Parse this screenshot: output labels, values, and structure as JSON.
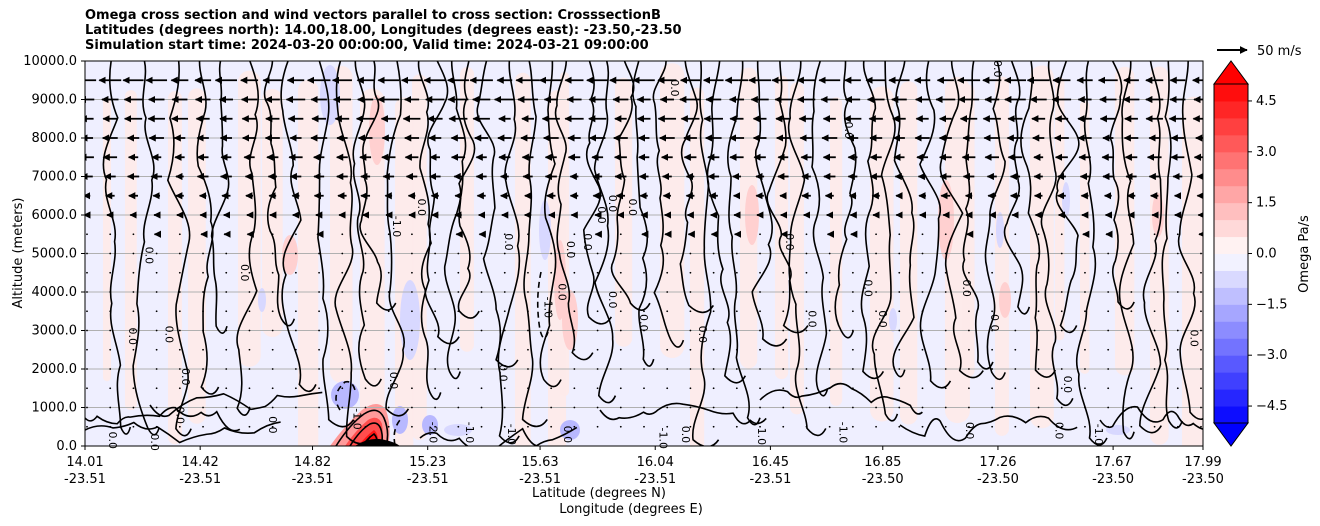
{
  "chart_data": {
    "type": "heatmap",
    "title_lines": [
      "Omega cross section and wind vectors parallel to cross section: CrosssectionB",
      "Latitudes (degrees north): 14.00,18.00, Longitudes (degrees east): -23.50,-23.50",
      "Simulation start time: 2024-03-20 00:00:00, Valid time: 2024-03-21 09:00:00"
    ],
    "ylabel": "Altitude (meters)",
    "xlabel_lines": [
      "Latitude (degrees N)",
      "Longitude (degrees E)"
    ],
    "ylim": [
      0,
      10000
    ],
    "yticks": [
      {
        "value": 0,
        "label": "0.0"
      },
      {
        "value": 1000,
        "label": "1000.0"
      },
      {
        "value": 2000,
        "label": "2000.0"
      },
      {
        "value": 3000,
        "label": "3000.0"
      },
      {
        "value": 4000,
        "label": "4000.0"
      },
      {
        "value": 5000,
        "label": "5000.0"
      },
      {
        "value": 6000,
        "label": "6000.0"
      },
      {
        "value": 7000,
        "label": "7000.0"
      },
      {
        "value": 8000,
        "label": "8000.0"
      },
      {
        "value": 9000,
        "label": "9000.0"
      },
      {
        "value": 10000,
        "label": "10000.0"
      }
    ],
    "xlim": [
      14.01,
      17.99
    ],
    "xticks": [
      {
        "value": 14.01,
        "lat": "14.01",
        "lon": "-23.51"
      },
      {
        "value": 14.42,
        "lat": "14.42",
        "lon": "-23.51"
      },
      {
        "value": 14.82,
        "lat": "14.82",
        "lon": "-23.51"
      },
      {
        "value": 15.23,
        "lat": "15.23",
        "lon": "-23.51"
      },
      {
        "value": 15.63,
        "lat": "15.63",
        "lon": "-23.51"
      },
      {
        "value": 16.04,
        "lat": "16.04",
        "lon": "-23.51"
      },
      {
        "value": 16.45,
        "lat": "16.45",
        "lon": "-23.51"
      },
      {
        "value": 16.85,
        "lat": "16.85",
        "lon": "-23.50"
      },
      {
        "value": 17.26,
        "lat": "17.26",
        "lon": "-23.50"
      },
      {
        "value": 17.67,
        "lat": "17.67",
        "lon": "-23.50"
      },
      {
        "value": 17.99,
        "lat": "17.99",
        "lon": "-23.50"
      }
    ],
    "grid": true,
    "colorbar": {
      "label": "Omega Pa/s",
      "range": [
        -5.0,
        5.0
      ],
      "step": 0.5,
      "extend": "both",
      "ticks": [
        {
          "value": 4.5,
          "label": "4.5"
        },
        {
          "value": 3.0,
          "label": "3.0"
        },
        {
          "value": 1.5,
          "label": "1.5"
        },
        {
          "value": 0.0,
          "label": "0.0"
        },
        {
          "value": -1.5,
          "label": "−1.5"
        },
        {
          "value": -3.0,
          "label": "−3.0"
        },
        {
          "value": -4.5,
          "label": "−4.5"
        }
      ]
    },
    "quiver_key": {
      "label": "50 m/s"
    },
    "contour_labels": [
      {
        "x": 14.11,
        "z": 150,
        "text": "0.0"
      },
      {
        "x": 14.18,
        "z": 2850,
        "text": "0.0"
      },
      {
        "x": 14.24,
        "z": 4950,
        "text": "0.0"
      },
      {
        "x": 14.31,
        "z": 2900,
        "text": "0.0"
      },
      {
        "x": 14.26,
        "z": 100,
        "text": "0.0"
      },
      {
        "x": 14.35,
        "z": 800,
        "text": "0.0"
      },
      {
        "x": 14.37,
        "z": 1800,
        "text": "0.0"
      },
      {
        "x": 14.58,
        "z": 4500,
        "text": "0.0"
      },
      {
        "x": 14.68,
        "z": 550,
        "text": "0.0"
      },
      {
        "x": 14.98,
        "z": 700,
        "text": "-1.0"
      },
      {
        "x": 15.11,
        "z": 1700,
        "text": "0.0"
      },
      {
        "x": 15.12,
        "z": 5700,
        "text": "-1.0"
      },
      {
        "x": 15.21,
        "z": 6200,
        "text": "0.0"
      },
      {
        "x": 15.25,
        "z": 350,
        "text": "-2.0"
      },
      {
        "x": 15.52,
        "z": 5300,
        "text": "0.0"
      },
      {
        "x": 15.5,
        "z": 1900,
        "text": "0.0"
      },
      {
        "x": 15.38,
        "z": 350,
        "text": "-1.0"
      },
      {
        "x": 15.53,
        "z": 300,
        "text": "-1.0"
      },
      {
        "x": 15.66,
        "z": 3600,
        "text": "-1.0"
      },
      {
        "x": 15.71,
        "z": 4000,
        "text": "0.0"
      },
      {
        "x": 15.74,
        "z": 5100,
        "text": "0.0"
      },
      {
        "x": 15.8,
        "z": 5300,
        "text": "0.0"
      },
      {
        "x": 15.73,
        "z": 300,
        "text": "0.0"
      },
      {
        "x": 15.85,
        "z": 6000,
        "text": "0.0"
      },
      {
        "x": 15.89,
        "z": 3800,
        "text": "0.0"
      },
      {
        "x": 15.89,
        "z": 6300,
        "text": "0.0"
      },
      {
        "x": 15.96,
        "z": 6200,
        "text": "0.0"
      },
      {
        "x": 16.0,
        "z": 3200,
        "text": "0.0"
      },
      {
        "x": 16.07,
        "z": 200,
        "text": "-1.0"
      },
      {
        "x": 16.11,
        "z": 9300,
        "text": "0.0"
      },
      {
        "x": 16.15,
        "z": 300,
        "text": "0.0"
      },
      {
        "x": 16.21,
        "z": 2900,
        "text": "0.0"
      },
      {
        "x": 16.42,
        "z": 250,
        "text": "1.0"
      },
      {
        "x": 16.52,
        "z": 5300,
        "text": "0.0"
      },
      {
        "x": 16.6,
        "z": 3300,
        "text": "0.0"
      },
      {
        "x": 16.71,
        "z": 350,
        "text": "-1.0"
      },
      {
        "x": 16.73,
        "z": 8200,
        "text": "0.0"
      },
      {
        "x": 16.8,
        "z": 4100,
        "text": "0.0"
      },
      {
        "x": 16.85,
        "z": 3300,
        "text": "0.0"
      },
      {
        "x": 17.16,
        "z": 400,
        "text": "0.0"
      },
      {
        "x": 17.15,
        "z": 4100,
        "text": "0.0"
      },
      {
        "x": 17.26,
        "z": 9800,
        "text": "0.0"
      },
      {
        "x": 17.25,
        "z": 3200,
        "text": "0.0"
      },
      {
        "x": 17.48,
        "z": 400,
        "text": "0.0"
      },
      {
        "x": 17.51,
        "z": 1600,
        "text": "0.0"
      },
      {
        "x": 17.62,
        "z": 300,
        "text": "-1.0"
      },
      {
        "x": 17.96,
        "z": 2800,
        "text": "0.0"
      }
    ]
  }
}
